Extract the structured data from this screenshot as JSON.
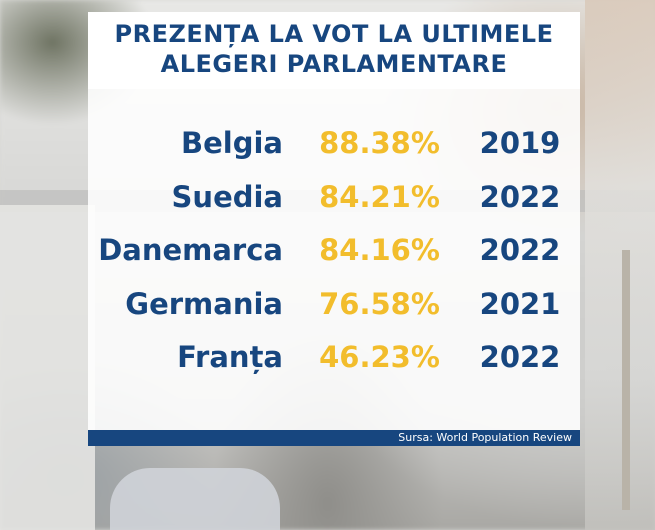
{
  "title": {
    "line1": "PREZENȚA LA VOT LA ULTIMELE",
    "line2": "ALEGERI PARLAMENTARE"
  },
  "rows": [
    {
      "country": "Belgia",
      "turnout": "88.38%",
      "year": "2019"
    },
    {
      "country": "Suedia",
      "turnout": "84.21%",
      "year": "2022"
    },
    {
      "country": "Danemarca",
      "turnout": "84.16%",
      "year": "2022"
    },
    {
      "country": "Germania",
      "turnout": "76.58%",
      "year": "2021"
    },
    {
      "country": "Franța",
      "turnout": "46.23%",
      "year": "2022"
    }
  ],
  "source": "Sursa: World Population Review",
  "colors": {
    "primary": "#17467f",
    "accent": "#f2bd2c",
    "panel": "#ffffff"
  }
}
